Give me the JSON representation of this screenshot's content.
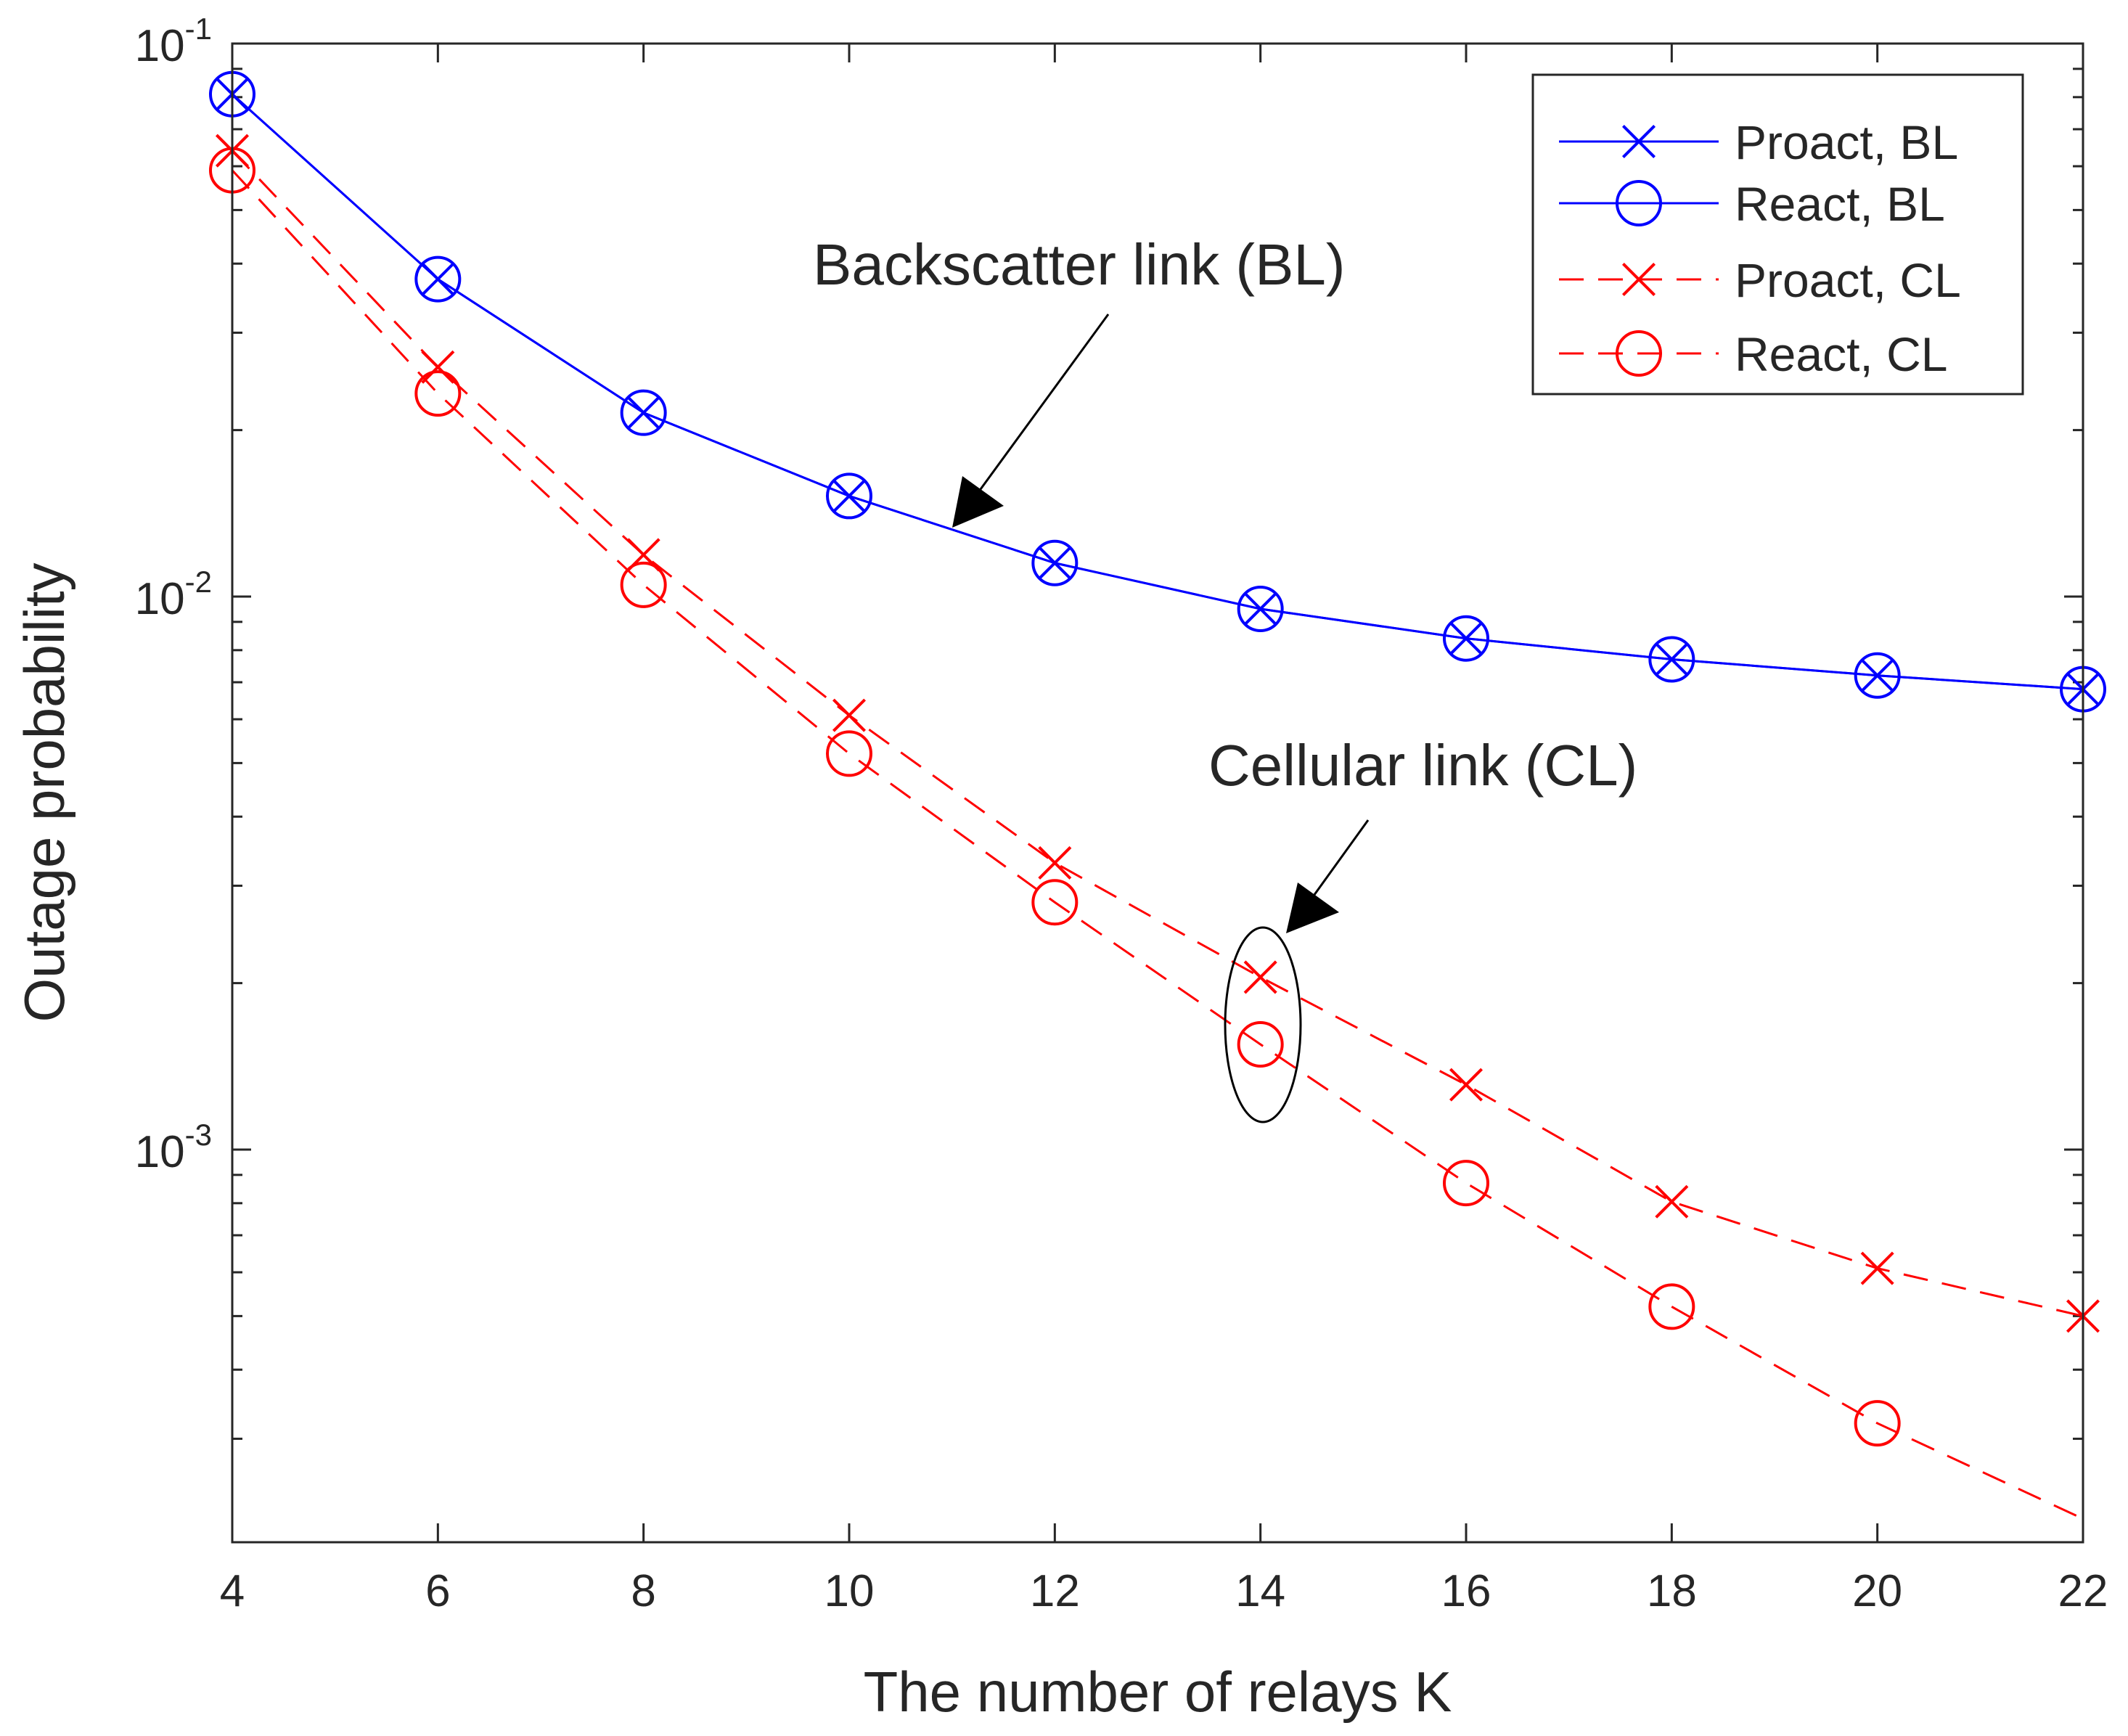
{
  "chart_data": {
    "type": "line",
    "title": "",
    "xlabel": "The number of relays K",
    "ylabel": "Outage probability",
    "xlim": [
      4,
      22
    ],
    "ylim": [
      0.00022,
      0.1
    ],
    "yscale": "log",
    "x_ticks": [
      "4",
      "6",
      "8",
      "10",
      "12",
      "14",
      "16",
      "18",
      "20",
      "22"
    ],
    "y_ticks": [
      {
        "value": 0.1,
        "base": "10",
        "exp": "-1"
      },
      {
        "value": 0.01,
        "base": "10",
        "exp": "-2"
      },
      {
        "value": 0.001,
        "base": "10",
        "exp": "-3"
      }
    ],
    "grid": false,
    "legend_position": "top-right",
    "x": [
      4,
      6,
      8,
      10,
      12,
      14,
      16,
      18,
      20,
      22
    ],
    "series": [
      {
        "name": "Proact, BL",
        "color": "#0000ff",
        "line": "solid",
        "marker": "x",
        "values": [
          0.081,
          0.0375,
          0.0215,
          0.0152,
          0.0115,
          0.0095,
          0.0084,
          0.0077,
          0.0072,
          0.0068
        ]
      },
      {
        "name": "React, BL",
        "color": "#0000ff",
        "line": "solid",
        "marker": "o",
        "values": [
          0.081,
          0.0375,
          0.0215,
          0.0152,
          0.0115,
          0.0095,
          0.0084,
          0.0077,
          0.0072,
          0.0068
        ]
      },
      {
        "name": "Proact, CL",
        "color": "#ff0000",
        "line": "dashed",
        "marker": "x",
        "values": [
          0.064,
          0.026,
          0.0119,
          0.0061,
          0.0033,
          0.00205,
          0.00131,
          0.000805,
          0.00061,
          0.0005
        ]
      },
      {
        "name": "React, CL",
        "color": "#ff0000",
        "line": "dashed",
        "marker": "o",
        "values": [
          0.059,
          0.0233,
          0.0105,
          0.0052,
          0.0028,
          0.00155,
          0.00087,
          0.00052,
          0.00032,
          0.000215
        ]
      }
    ],
    "annotations": [
      {
        "text": "Backscatter link (BL)",
        "points_to": {
          "x": 11,
          "y": 0.0135
        }
      },
      {
        "text": "Cellular link (CL)",
        "points_to": {
          "x": 14.1,
          "y": 0.0025
        }
      }
    ]
  }
}
